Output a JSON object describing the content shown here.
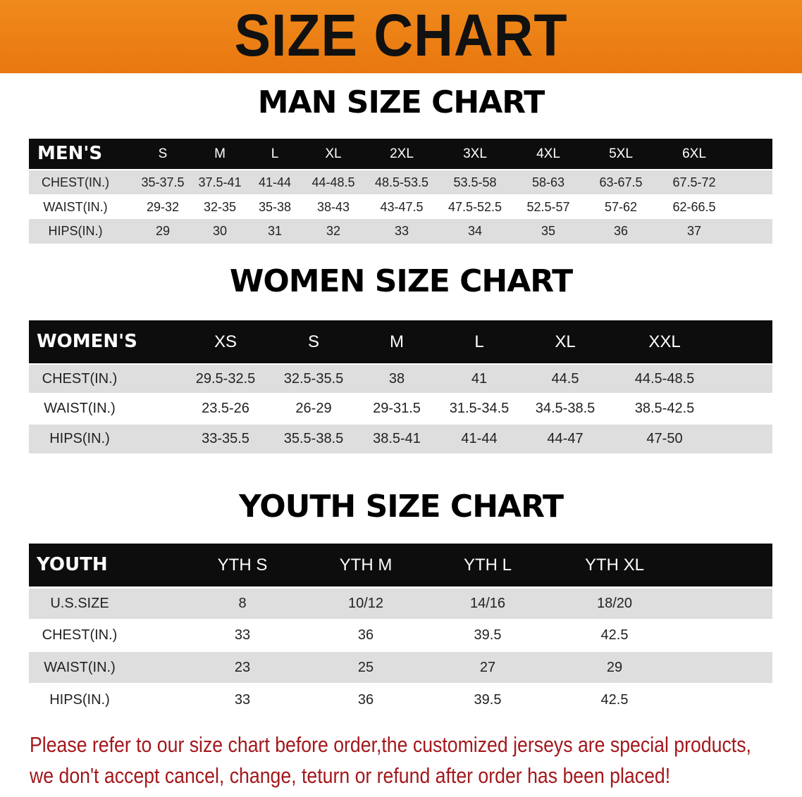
{
  "banner": {
    "title": "SIZE CHART",
    "color": "#ec7f15"
  },
  "men": {
    "title": "MAN SIZE CHART",
    "header": [
      "MEN'S",
      "S",
      "M",
      "L",
      "XL",
      "2XL",
      "3XL",
      "4XL",
      "5XL",
      "6XL"
    ],
    "rows": [
      [
        "CHEST(IN.)",
        "35-37.5",
        "37.5-41",
        "41-44",
        "44-48.5",
        "48.5-53.5",
        "53.5-58",
        "58-63",
        "63-67.5",
        "67.5-72"
      ],
      [
        "WAIST(IN.)",
        "29-32",
        "32-35",
        "35-38",
        "38-43",
        "43-47.5",
        "47.5-52.5",
        "52.5-57",
        "57-62",
        "62-66.5"
      ],
      [
        "HIPS(IN.)",
        "29",
        "30",
        "31",
        "32",
        "33",
        "34",
        "35",
        "36",
        "37"
      ]
    ]
  },
  "women": {
    "title": "WOMEN SIZE CHART",
    "header": [
      "WOMEN'S",
      "XS",
      "S",
      "M",
      "L",
      "XL",
      "XXL"
    ],
    "rows": [
      [
        "CHEST(IN.)",
        "29.5-32.5",
        "32.5-35.5",
        "38",
        "41",
        "44.5",
        "44.5-48.5"
      ],
      [
        "WAIST(IN.)",
        "23.5-26",
        "26-29",
        "29-31.5",
        "31.5-34.5",
        "34.5-38.5",
        "38.5-42.5"
      ],
      [
        "HIPS(IN.)",
        "33-35.5",
        "35.5-38.5",
        "38.5-41",
        "41-44",
        "44-47",
        "47-50"
      ]
    ]
  },
  "youth": {
    "title": "YOUTH SIZE CHART",
    "header": [
      "YOUTH",
      "YTH S",
      "YTH M",
      "YTH L",
      "YTH XL"
    ],
    "rows": [
      [
        "U.S.SIZE",
        "8",
        "10/12",
        "14/16",
        "18/20"
      ],
      [
        "CHEST(IN.)",
        "33",
        "36",
        "39.5",
        "42.5"
      ],
      [
        "WAIST(IN.)",
        "23",
        "25",
        "27",
        "29"
      ],
      [
        "HIPS(IN.)",
        "33",
        "36",
        "39.5",
        "42.5"
      ]
    ]
  },
  "note": {
    "line1": "Please refer to our size chart before order,the customized jerseys are special products,",
    "line2": "we don't accept cancel, change, teturn or refund after order has been placed!",
    "color": "#a3181c"
  }
}
